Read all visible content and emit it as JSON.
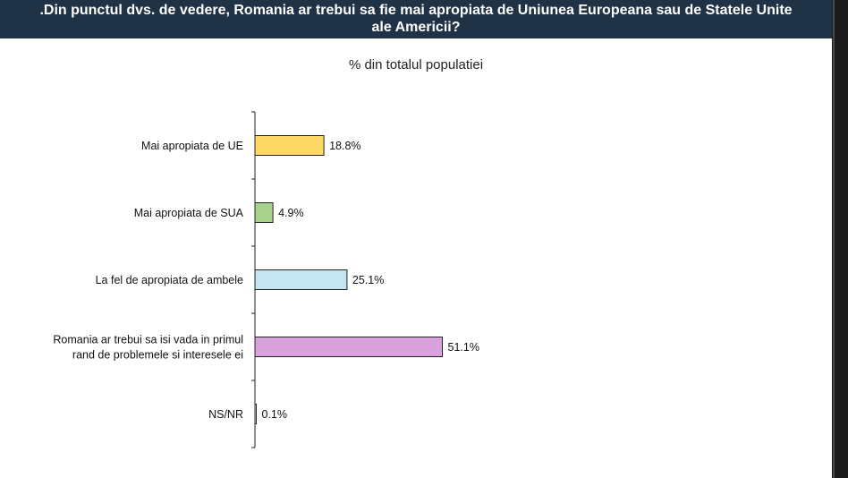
{
  "page": {
    "title": ".Din punctul dvs. de vedere, Romania ar trebui sa fie mai apropiata de Uniunea Europeana sau de Statele Unite\nale Americii?",
    "subtitle": "% din totalul populatiei"
  },
  "chart_data": {
    "type": "bar",
    "orientation": "horizontal",
    "title": "% din totalul populatiei",
    "categories": [
      "Mai apropiata de UE",
      "Mai apropiata de SUA",
      "La fel de apropiata de ambele",
      "Romania ar trebui sa isi vada in primul\nrand de problemele si interesele ei",
      "NS/NR"
    ],
    "values": [
      18.8,
      4.9,
      25.1,
      51.1,
      0.1
    ],
    "value_labels": [
      "18.8%",
      "4.9%",
      "25.1%",
      "51.1%",
      "0.1%"
    ],
    "colors": [
      "#ffd966",
      "#a9d18e",
      "#c5e5f0",
      "#d9a2dd",
      "#ffffff"
    ],
    "xlabel": "",
    "ylabel": "",
    "grid": false,
    "legend": "none"
  }
}
